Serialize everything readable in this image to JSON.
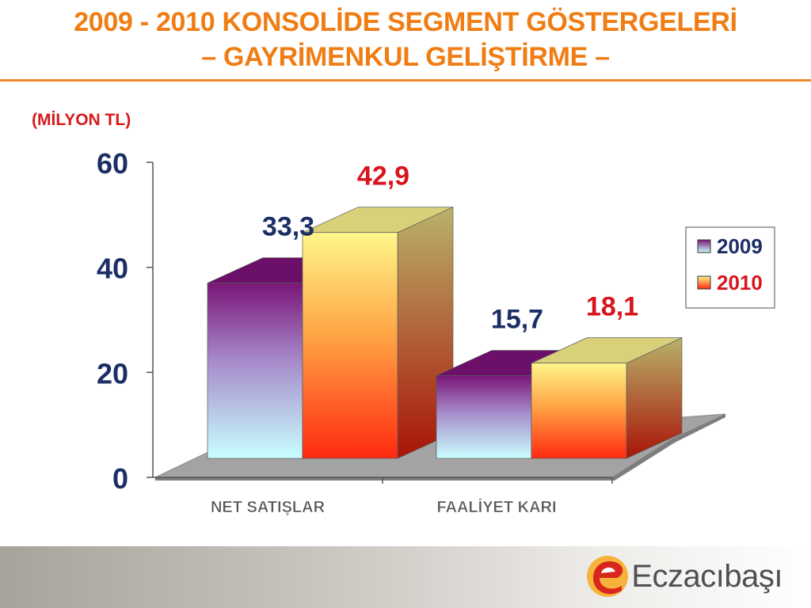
{
  "title": {
    "line1": "2009 - 2010 KONSOLİDE SEGMENT GÖSTERGELERİ",
    "line2": "– GAYRİMENKUL GELİŞTİRME –"
  },
  "unit_label": "(MİLYON  TL)",
  "chart_data": {
    "type": "bar",
    "categories": [
      "NET  SATIŞLAR",
      "FAALİYET KARI"
    ],
    "series": [
      {
        "name": "2009",
        "values": [
          33.3,
          15.7
        ],
        "labels": [
          "33,3",
          "15,7"
        ],
        "label_color": "#1b2e66"
      },
      {
        "name": "2010",
        "values": [
          42.9,
          18.1
        ],
        "labels": [
          "42,9",
          "18,1"
        ],
        "label_color": "#d8141c"
      }
    ],
    "ylim": [
      0,
      60
    ],
    "yticks": [
      "0",
      "20",
      "40",
      "60"
    ],
    "ytick_values": [
      0,
      20,
      40,
      60
    ],
    "grid": false,
    "legend_position": "right",
    "three_d": true
  },
  "logo": {
    "text": "Eczacıbaşı"
  },
  "colors": {
    "title": "#f07d14",
    "unit": "#d61a1a",
    "axis_text": "#1b2e66",
    "series_2009_top": "#7a1578",
    "series_2009_bottom": "#c9ffff",
    "series_2010_top": "#fff68a",
    "series_2010_bottom": "#ff2a10",
    "floor": "#9c9c9c"
  }
}
